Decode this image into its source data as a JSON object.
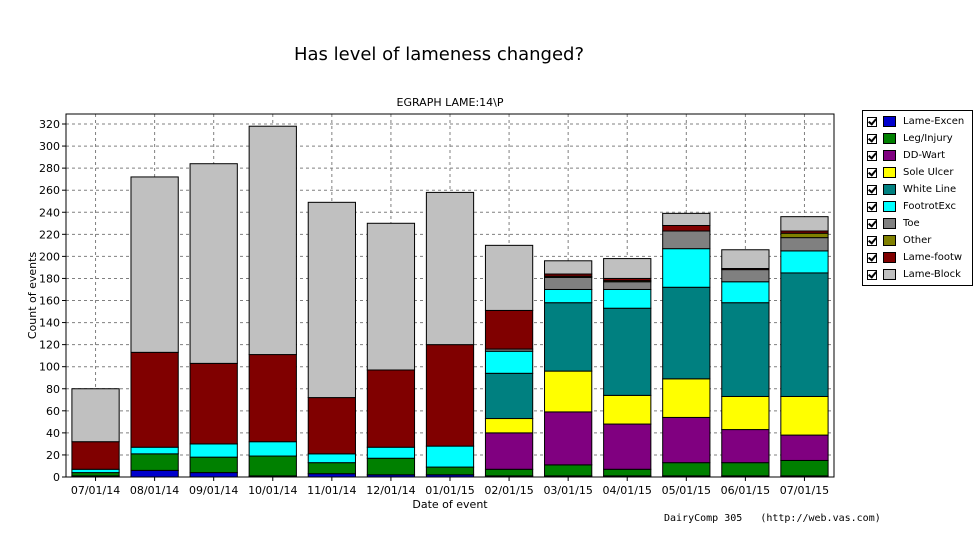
{
  "title": "Has level of lameness changed?",
  "footer": "DairyComp 305   (http://web.vas.com)",
  "chart_data": {
    "type": "bar",
    "stacked": true,
    "title": "EGRAPH LAME:14\\P",
    "xlabel": "Date of event",
    "ylabel": "Count of events",
    "ylim": [
      0,
      320
    ],
    "yticks": [
      0,
      20,
      40,
      60,
      80,
      100,
      120,
      140,
      160,
      180,
      200,
      220,
      240,
      260,
      280,
      300,
      320
    ],
    "grid": true,
    "legend_position": "right",
    "categories": [
      "07/01/14",
      "08/01/14",
      "09/01/14",
      "10/01/14",
      "11/01/14",
      "12/01/14",
      "01/01/15",
      "02/01/15",
      "03/01/15",
      "04/01/15",
      "05/01/15",
      "06/01/15",
      "07/01/15"
    ],
    "series": [
      {
        "name": "Lame-Excen",
        "color": "#0000CC",
        "values": [
          1,
          6,
          4,
          1,
          3,
          2,
          2,
          1,
          1,
          1,
          1,
          1,
          1
        ]
      },
      {
        "name": "Leg/Injury",
        "color": "#008000",
        "values": [
          3,
          15,
          14,
          18,
          10,
          15,
          7,
          6,
          10,
          6,
          12,
          12,
          14
        ]
      },
      {
        "name": "DD-Wart",
        "color": "#800080",
        "values": [
          0,
          0,
          0,
          0,
          0,
          0,
          0,
          33,
          48,
          41,
          41,
          30,
          23
        ]
      },
      {
        "name": "Sole Ulcer",
        "color": "#FFFF00",
        "values": [
          0,
          0,
          0,
          0,
          0,
          0,
          0,
          13,
          37,
          26,
          35,
          30,
          35
        ]
      },
      {
        "name": "White Line",
        "color": "#008080",
        "values": [
          0,
          0,
          0,
          0,
          0,
          0,
          0,
          41,
          62,
          79,
          83,
          85,
          112
        ]
      },
      {
        "name": "FootrotExc",
        "color": "#00FFFF",
        "values": [
          3,
          6,
          12,
          13,
          8,
          10,
          19,
          20,
          12,
          17,
          35,
          19,
          20
        ]
      },
      {
        "name": "Toe",
        "color": "#808080",
        "values": [
          0,
          0,
          0,
          0,
          0,
          0,
          0,
          2,
          11,
          7,
          16,
          11,
          12
        ]
      },
      {
        "name": "Other",
        "color": "#808000",
        "values": [
          0,
          0,
          0,
          0,
          0,
          0,
          0,
          0,
          1,
          1,
          0,
          0,
          4
        ]
      },
      {
        "name": "Lame-footw",
        "color": "#800000",
        "values": [
          25,
          86,
          73,
          79,
          51,
          70,
          92,
          35,
          2,
          2,
          5,
          1,
          2
        ]
      },
      {
        "name": "Lame-Block",
        "color": "#C0C0C0",
        "values": [
          48,
          159,
          181,
          207,
          177,
          133,
          138,
          59,
          12,
          18,
          11,
          17,
          13
        ]
      }
    ]
  }
}
